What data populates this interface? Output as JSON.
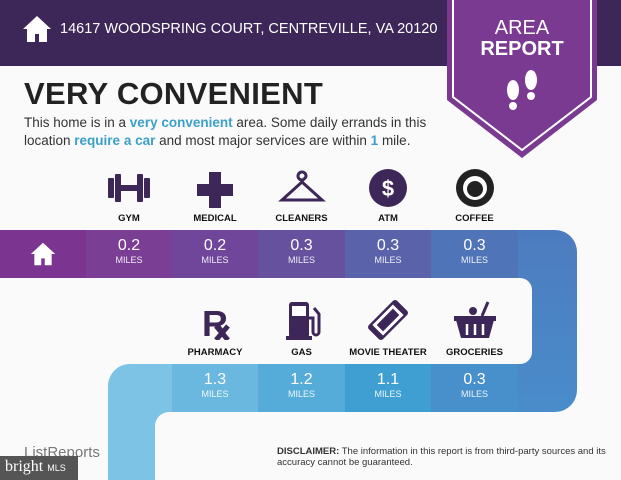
{
  "header": {
    "address": "14617 WOODSPRING COURT, CENTREVILLE, VA 20120",
    "badge_line1": "AREA",
    "badge_line2": "REPORT"
  },
  "title": "VERY CONVENIENT",
  "description": {
    "p1": "This home is in a ",
    "h1": "very convenient",
    "p2": " area. Some daily errands in this location ",
    "h2": "require a car",
    "p3": " and most major services are within ",
    "h3": "1",
    "p4": " mile."
  },
  "unit": "MILES",
  "top_row": [
    {
      "label": "GYM",
      "value": "0.2",
      "icon": "dumbbell-icon"
    },
    {
      "label": "MEDICAL",
      "value": "0.2",
      "icon": "medical-cross-icon"
    },
    {
      "label": "CLEANERS",
      "value": "0.3",
      "icon": "hanger-icon"
    },
    {
      "label": "ATM",
      "value": "0.3",
      "icon": "dollar-icon"
    },
    {
      "label": "COFFEE",
      "value": "0.3",
      "icon": "starbucks-icon"
    }
  ],
  "bottom_row": [
    {
      "label": "PHARMACY",
      "value": "1.3",
      "icon": "rx-icon"
    },
    {
      "label": "GAS",
      "value": "1.2",
      "icon": "gas-pump-icon"
    },
    {
      "label": "MOVIE THEATER",
      "value": "1.1",
      "icon": "ticket-icon"
    },
    {
      "label": "GROCERIES",
      "value": "0.3",
      "icon": "basket-icon"
    }
  ],
  "disclaimer": {
    "bold": "DISCLAIMER:",
    "text": " The information in this report is from third-party sources and its accuracy cannot be guaranteed."
  },
  "footer": {
    "logo": "ListReports",
    "watermark": "bright",
    "watermark_suffix": "MLS"
  },
  "colors": {
    "header": "#3d2758",
    "badge": "#7b3a92",
    "accent": "#3aa0c8"
  }
}
